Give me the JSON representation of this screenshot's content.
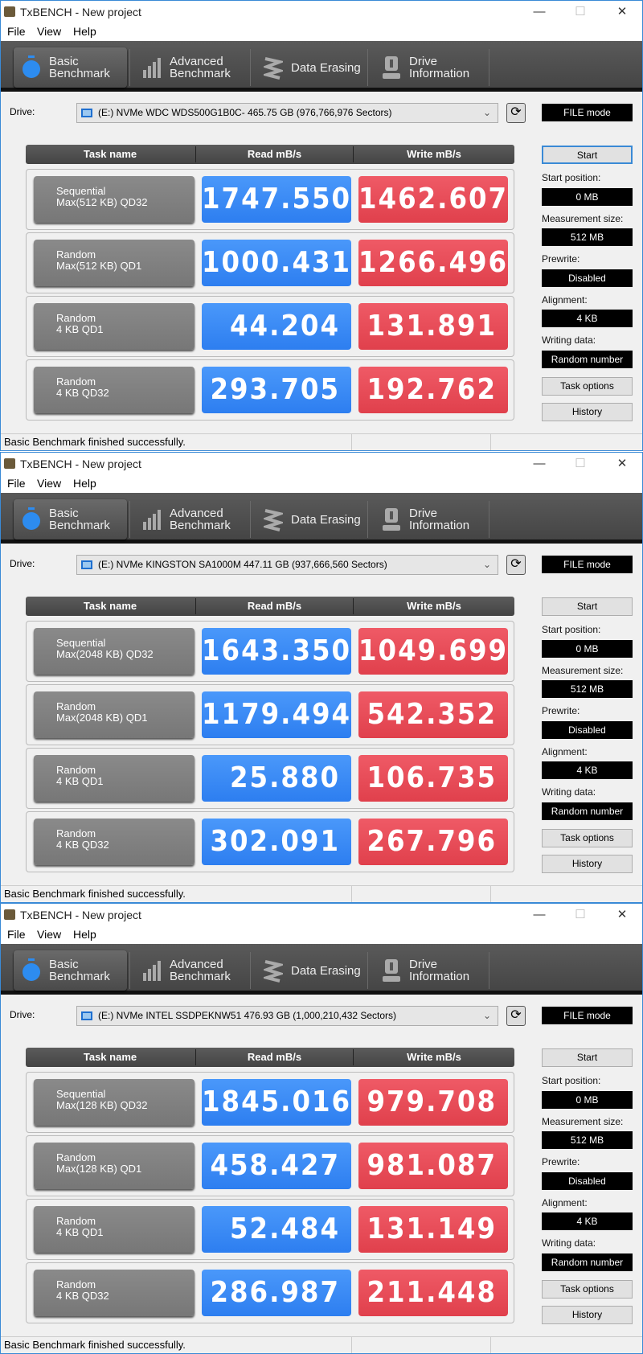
{
  "app_title": "TxBENCH - New project",
  "menu": [
    "File",
    "View",
    "Help"
  ],
  "tabs": [
    {
      "label1": "Basic",
      "label2": "Benchmark",
      "icon": "stopwatch-icon",
      "active": true
    },
    {
      "label1": "Advanced",
      "label2": "Benchmark",
      "icon": "bar-chart-icon",
      "active": false
    },
    {
      "label1": "Data Erasing",
      "label2": "",
      "icon": "eraser-icon",
      "active": false
    },
    {
      "label1": "Drive",
      "label2": "Information",
      "icon": "drive-info-icon",
      "active": false
    }
  ],
  "drive_label": "Drive:",
  "file_mode": "FILE mode",
  "headers": [
    "Task name",
    "Read mB/s",
    "Write mB/s"
  ],
  "right_panel": {
    "start": "Start",
    "start_position_label": "Start position:",
    "start_position": "0 MB",
    "measurement_size_label": "Measurement size:",
    "measurement_size": "512 MB",
    "prewrite_label": "Prewrite:",
    "prewrite": "Disabled",
    "alignment_label": "Alignment:",
    "alignment": "4 KB",
    "writing_data_label": "Writing data:",
    "writing_data": "Random number",
    "task_options": "Task options",
    "history": "History"
  },
  "colors": {
    "read": "#3a8cf5",
    "write": "#e84b57"
  },
  "windows": [
    {
      "drive": "(E:) NVMe WDC WDS500G1B0C-  465.75 GB (976,766,976 Sectors)",
      "status": "Basic Benchmark finished successfully.",
      "rows": [
        {
          "task1": "Sequential",
          "task2": "Max(512 KB) QD32",
          "read": "1747.550",
          "write": "1462.607"
        },
        {
          "task1": "Random",
          "task2": "Max(512 KB) QD1",
          "read": "1000.431",
          "write": "1266.496"
        },
        {
          "task1": "Random",
          "task2": "4 KB QD1",
          "read": "44.204",
          "write": "131.891"
        },
        {
          "task1": "Random",
          "task2": "4 KB QD32",
          "read": "293.705",
          "write": "192.762"
        }
      ]
    },
    {
      "drive": "(E:) NVMe KINGSTON SA1000M  447.11 GB (937,666,560 Sectors)",
      "status": "Basic Benchmark finished successfully.",
      "rows": [
        {
          "task1": "Sequential",
          "task2": "Max(2048 KB) QD32",
          "read": "1643.350",
          "write": "1049.699"
        },
        {
          "task1": "Random",
          "task2": "Max(2048 KB) QD1",
          "read": "1179.494",
          "write": "542.352"
        },
        {
          "task1": "Random",
          "task2": "4 KB QD1",
          "read": "25.880",
          "write": "106.735"
        },
        {
          "task1": "Random",
          "task2": "4 KB QD32",
          "read": "302.091",
          "write": "267.796"
        }
      ]
    },
    {
      "drive": "(E:) NVMe INTEL SSDPEKNW51  476.93 GB (1,000,210,432 Sectors)",
      "status": "Basic Benchmark finished successfully.",
      "rows": [
        {
          "task1": "Sequential",
          "task2": "Max(128 KB) QD32",
          "read": "1845.016",
          "write": "979.708"
        },
        {
          "task1": "Random",
          "task2": "Max(128 KB) QD1",
          "read": "458.427",
          "write": "981.087"
        },
        {
          "task1": "Random",
          "task2": "4 KB QD1",
          "read": "52.484",
          "write": "131.149"
        },
        {
          "task1": "Random",
          "task2": "4 KB QD32",
          "read": "286.987",
          "write": "211.448"
        }
      ]
    }
  ]
}
